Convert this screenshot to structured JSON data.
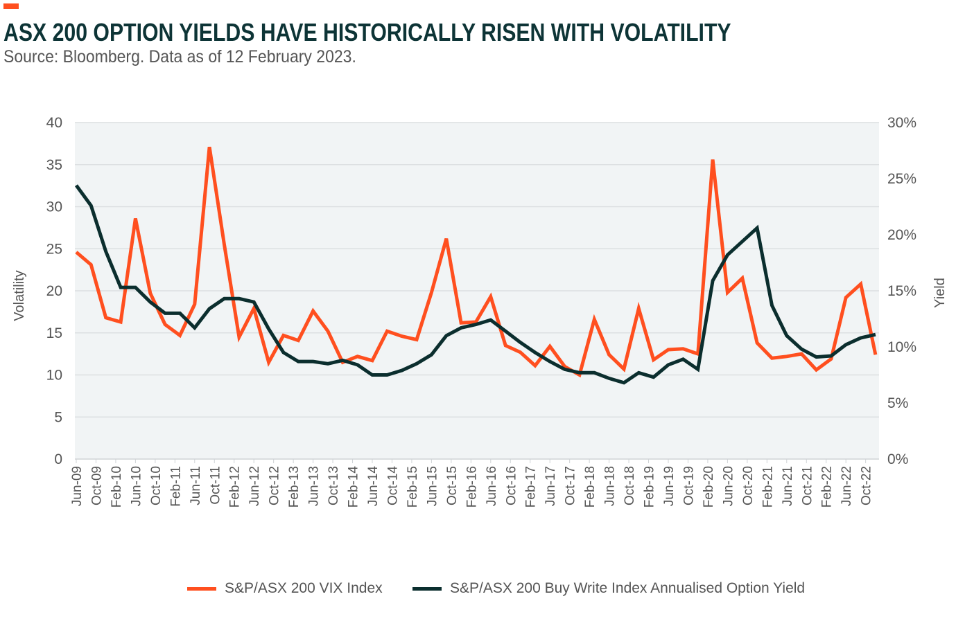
{
  "header": {
    "title": "ASX 200 OPTION YIELDS HAVE HISTORICALLY RISEN WITH VOLATILITY",
    "subtitle": "Source: Bloomberg. Data as of 12 February 2023."
  },
  "colors": {
    "accent": "#ff4f1f",
    "vix": "#ff4f1f",
    "yield": "#0b2e2e",
    "plot_bg": "#f1f4f5",
    "grid": "#dcdfe1"
  },
  "chart_data": {
    "type": "line",
    "title": "ASX 200 OPTION YIELDS HAVE HISTORICALLY RISEN WITH VOLATILITY",
    "ylabel": "Volatility",
    "y2label": "Yield",
    "ylim": [
      0,
      40
    ],
    "y2lim": [
      0,
      30
    ],
    "yticks": [
      "0",
      "5",
      "10",
      "15",
      "20",
      "25",
      "30",
      "35",
      "40"
    ],
    "y2ticks": [
      "0%",
      "5%",
      "10%",
      "15%",
      "20%",
      "25%",
      "30%"
    ],
    "grid": true,
    "legend_position": "bottom",
    "x_frequency": "quarterly, Jun-09 to Dec-22",
    "xtick_labels": [
      "Jun-09",
      "Oct-09",
      "Feb-10",
      "Jun-10",
      "Oct-10",
      "Feb-11",
      "Jun-11",
      "Oct-11",
      "Feb-12",
      "Jun-12",
      "Oct-12",
      "Feb-13",
      "Jun-13",
      "Oct-13",
      "Feb-14",
      "Jun-14",
      "Oct-14",
      "Feb-15",
      "Jun-15",
      "Oct-15",
      "Feb-16",
      "Jun-16",
      "Oct-16",
      "Feb-17",
      "Jun-17",
      "Oct-17",
      "Feb-18",
      "Jun-18",
      "Oct-18",
      "Feb-19",
      "Jun-19",
      "Oct-19",
      "Feb-20",
      "Jun-20",
      "Oct-20",
      "Feb-21",
      "Jun-21",
      "Oct-21",
      "Feb-22",
      "Jun-22",
      "Oct-22"
    ],
    "series": [
      {
        "name": "S&P/ASX 200 VIX Index",
        "axis": "left",
        "values": [
          24.6,
          23.1,
          16.8,
          16.3,
          28.6,
          19.7,
          16.0,
          14.7,
          18.4,
          37.1,
          25.5,
          14.5,
          17.9,
          11.5,
          14.7,
          14.1,
          17.6,
          15.2,
          11.5,
          12.2,
          11.7,
          15.2,
          14.6,
          14.2,
          19.8,
          26.2,
          16.2,
          16.3,
          19.3,
          13.5,
          12.7,
          11.1,
          13.4,
          11.0,
          10.0,
          16.6,
          12.4,
          10.7,
          17.9,
          11.8,
          13.0,
          13.1,
          12.5,
          35.6,
          19.8,
          21.5,
          13.8,
          12.0,
          12.2,
          12.5,
          10.6,
          11.9,
          19.2,
          20.8,
          12.4
        ]
      },
      {
        "name": "S&P/ASX 200 Buy Write Index Annualised Option Yield",
        "axis": "right",
        "unit": "%",
        "values": [
          24.4,
          22.6,
          18.5,
          15.3,
          15.3,
          14.0,
          13.0,
          13.0,
          11.7,
          13.4,
          14.3,
          14.3,
          14.0,
          11.6,
          9.5,
          8.7,
          8.7,
          8.5,
          8.8,
          8.4,
          7.5,
          7.5,
          7.9,
          8.5,
          9.3,
          11.0,
          11.7,
          12.0,
          12.4,
          11.4,
          10.4,
          9.5,
          8.7,
          8.0,
          7.7,
          7.7,
          7.2,
          6.8,
          7.7,
          7.3,
          8.4,
          8.9,
          8.0,
          15.9,
          18.2,
          19.4,
          20.6,
          13.7,
          11.0,
          9.8,
          9.1,
          9.2,
          10.2,
          10.8,
          11.1
        ]
      }
    ]
  }
}
